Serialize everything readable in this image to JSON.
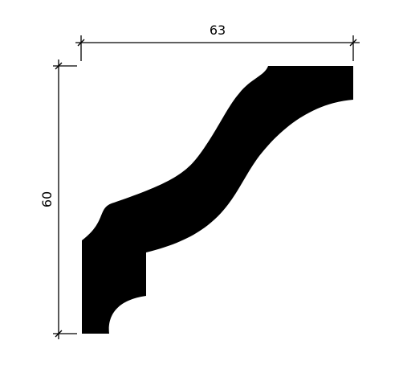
{
  "drawing": {
    "subject": "cornice-molding-profile",
    "width_dimension": {
      "value": "63"
    },
    "height_dimension": {
      "value": "60"
    },
    "fill_color": "#000000",
    "line_color": "#000000",
    "background_color": "#ffffff"
  }
}
